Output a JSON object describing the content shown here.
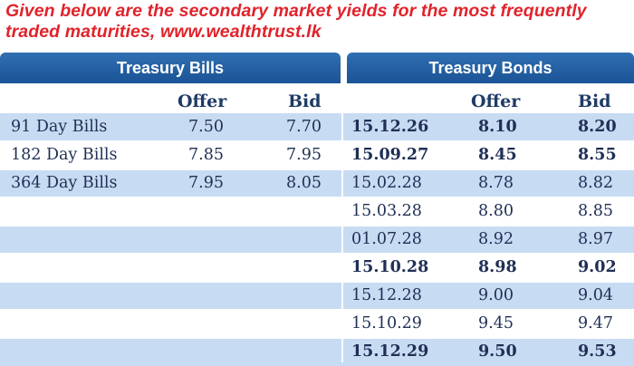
{
  "intro_text": "Given below are the secondary market yields for the most frequently traded maturities, www.wealthtrust.lk",
  "bills": {
    "title": "Treasury Bills",
    "offer_label": "Offer",
    "bid_label": "Bid",
    "rows": [
      {
        "name": "91 Day Bills",
        "offer": "7.50",
        "bid": "7.70"
      },
      {
        "name": "182 Day Bills",
        "offer": "7.85",
        "bid": "7.95"
      },
      {
        "name": "364 Day Bills",
        "offer": "7.95",
        "bid": "8.05"
      }
    ]
  },
  "bonds": {
    "title": "Treasury Bonds",
    "offer_label": "Offer",
    "bid_label": "Bid",
    "rows": [
      {
        "maturity": "15.12.26",
        "offer": "8.10",
        "bid": "8.20",
        "bold": true
      },
      {
        "maturity": "15.09.27",
        "offer": "8.45",
        "bid": "8.55",
        "bold": true
      },
      {
        "maturity": "15.02.28",
        "offer": "8.78",
        "bid": "8.82",
        "bold": false
      },
      {
        "maturity": "15.03.28",
        "offer": "8.80",
        "bid": "8.85",
        "bold": false
      },
      {
        "maturity": "01.07.28",
        "offer": "8.92",
        "bid": "8.97",
        "bold": false
      },
      {
        "maturity": "15.10.28",
        "offer": "8.98",
        "bid": "9.02",
        "bold": true
      },
      {
        "maturity": "15.12.28",
        "offer": "9.00",
        "bid": "9.04",
        "bold": false
      },
      {
        "maturity": "15.10.29",
        "offer": "9.45",
        "bid": "9.47",
        "bold": false
      },
      {
        "maturity": "15.12.29",
        "offer": "9.50",
        "bid": "9.53",
        "bold": true
      }
    ]
  }
}
